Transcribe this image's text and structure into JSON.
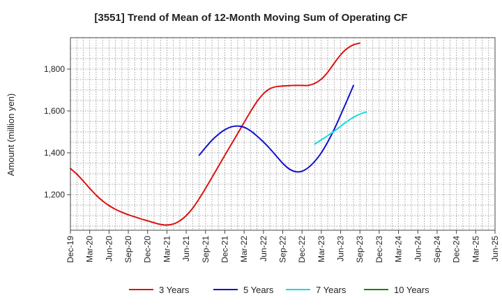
{
  "chart_data": {
    "type": "line",
    "title": "[3551]  Trend of Mean of 12-Month Moving Sum of Operating CF",
    "xlabel": "",
    "ylabel": "Amount (million yen)",
    "ylim": [
      1030,
      1950
    ],
    "yticks": [
      1200,
      1400,
      1600,
      1800
    ],
    "ytick_labels": [
      "1,200",
      "1,400",
      "1,600",
      "1,800"
    ],
    "x_range_months": [
      0,
      66
    ],
    "xticks": [
      {
        "label": "Dec-19",
        "m": 0
      },
      {
        "label": "Mar-20",
        "m": 3
      },
      {
        "label": "Jun-20",
        "m": 6
      },
      {
        "label": "Sep-20",
        "m": 9
      },
      {
        "label": "Dec-20",
        "m": 12
      },
      {
        "label": "Mar-21",
        "m": 15
      },
      {
        "label": "Jun-21",
        "m": 18
      },
      {
        "label": "Sep-21",
        "m": 21
      },
      {
        "label": "Dec-21",
        "m": 24
      },
      {
        "label": "Mar-22",
        "m": 27
      },
      {
        "label": "Jun-22",
        "m": 30
      },
      {
        "label": "Sep-22",
        "m": 33
      },
      {
        "label": "Dec-22",
        "m": 36
      },
      {
        "label": "Mar-23",
        "m": 39
      },
      {
        "label": "Jun-23",
        "m": 42
      },
      {
        "label": "Sep-23",
        "m": 45
      },
      {
        "label": "Dec-23",
        "m": 48
      },
      {
        "label": "Mar-24",
        "m": 51
      },
      {
        "label": "Jun-24",
        "m": 54
      },
      {
        "label": "Sep-24",
        "m": 57
      },
      {
        "label": "Dec-24",
        "m": 60
      },
      {
        "label": "Mar-25",
        "m": 63
      },
      {
        "label": "Jun-25",
        "m": 66
      }
    ],
    "series": [
      {
        "name": "3 Years",
        "color": "#dd1111",
        "points": [
          [
            0,
            1325
          ],
          [
            1,
            1298
          ],
          [
            2,
            1265
          ],
          [
            3,
            1230
          ],
          [
            4,
            1198
          ],
          [
            5,
            1170
          ],
          [
            6,
            1148
          ],
          [
            7,
            1130
          ],
          [
            8,
            1116
          ],
          [
            9,
            1104
          ],
          [
            10,
            1094
          ],
          [
            11,
            1084
          ],
          [
            12,
            1075
          ],
          [
            13,
            1066
          ],
          [
            14,
            1058
          ],
          [
            15,
            1055
          ],
          [
            16,
            1060
          ],
          [
            17,
            1075
          ],
          [
            18,
            1100
          ],
          [
            19,
            1135
          ],
          [
            20,
            1180
          ],
          [
            21,
            1230
          ],
          [
            22,
            1282
          ],
          [
            23,
            1335
          ],
          [
            24,
            1388
          ],
          [
            25,
            1440
          ],
          [
            26,
            1492
          ],
          [
            27,
            1545
          ],
          [
            28,
            1597
          ],
          [
            29,
            1645
          ],
          [
            30,
            1682
          ],
          [
            31,
            1706
          ],
          [
            32,
            1716
          ],
          [
            33,
            1719
          ],
          [
            34,
            1721
          ],
          [
            35,
            1722
          ],
          [
            36,
            1722
          ],
          [
            37,
            1722
          ],
          [
            38,
            1732
          ],
          [
            39,
            1752
          ],
          [
            40,
            1785
          ],
          [
            41,
            1828
          ],
          [
            42,
            1868
          ],
          [
            43,
            1898
          ],
          [
            44,
            1916
          ],
          [
            45,
            1924
          ]
        ]
      },
      {
        "name": "5 Years",
        "color": "#1111cc",
        "points": [
          [
            20,
            1388
          ],
          [
            21,
            1425
          ],
          [
            22,
            1460
          ],
          [
            23,
            1488
          ],
          [
            24,
            1510
          ],
          [
            25,
            1524
          ],
          [
            26,
            1528
          ],
          [
            27,
            1522
          ],
          [
            28,
            1505
          ],
          [
            29,
            1480
          ],
          [
            30,
            1452
          ],
          [
            31,
            1420
          ],
          [
            32,
            1385
          ],
          [
            33,
            1350
          ],
          [
            34,
            1323
          ],
          [
            35,
            1310
          ],
          [
            36,
            1312
          ],
          [
            37,
            1330
          ],
          [
            38,
            1360
          ],
          [
            39,
            1400
          ],
          [
            40,
            1452
          ],
          [
            41,
            1512
          ],
          [
            42,
            1580
          ],
          [
            43,
            1650
          ],
          [
            44,
            1722
          ]
        ]
      },
      {
        "name": "7 Years",
        "color": "#11dddd",
        "points": [
          [
            38,
            1442
          ],
          [
            39,
            1462
          ],
          [
            40,
            1482
          ],
          [
            41,
            1503
          ],
          [
            42,
            1527
          ],
          [
            43,
            1550
          ],
          [
            44,
            1570
          ],
          [
            45,
            1585
          ],
          [
            46,
            1595
          ]
        ]
      },
      {
        "name": "10 Years",
        "color": "#118811",
        "points": []
      }
    ]
  }
}
